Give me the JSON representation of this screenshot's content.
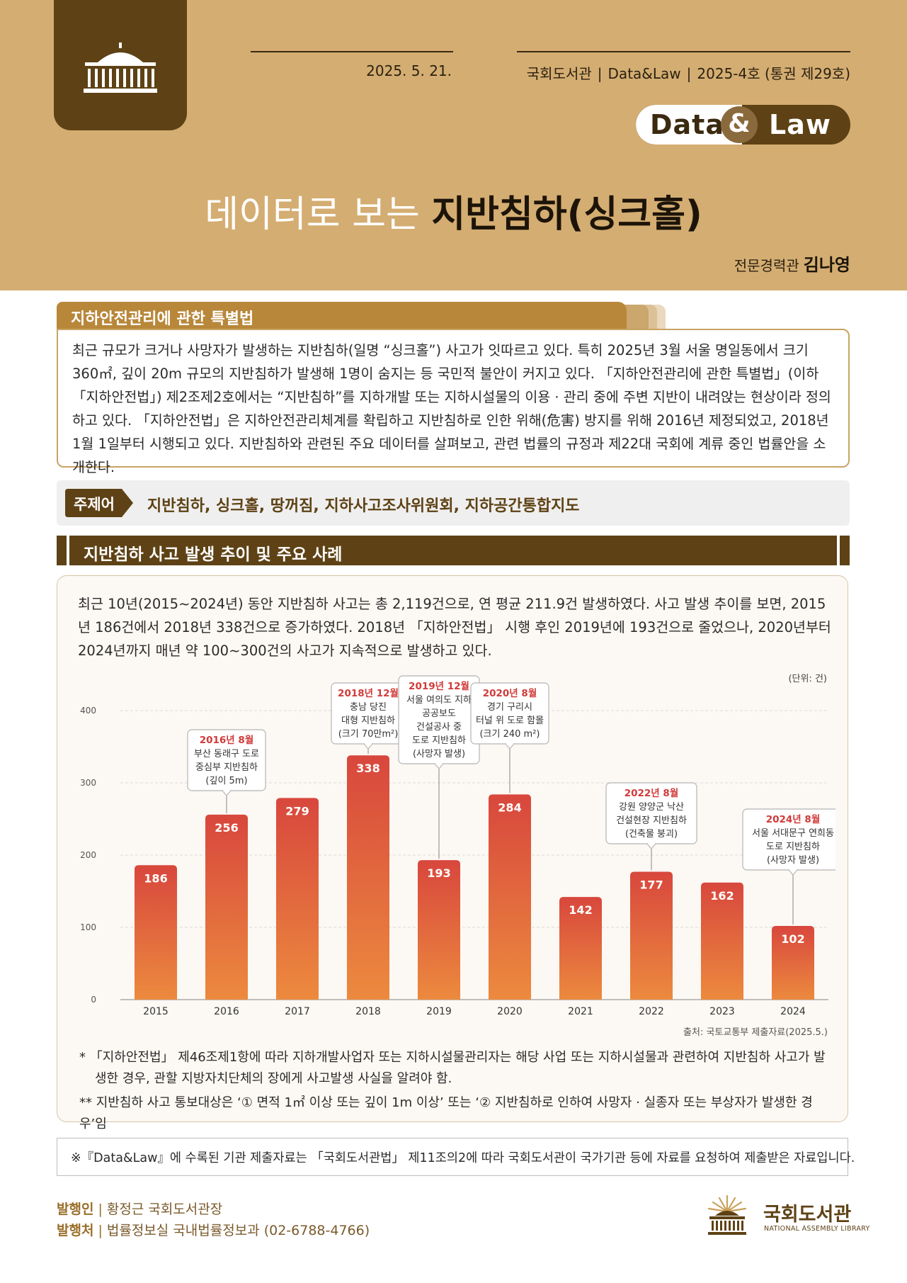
{
  "header": {
    "date": "2025. 5. 21.",
    "issue": [
      "국회도서관",
      "Data&Law",
      "2025-4호 (통권 제29호)"
    ],
    "badge": {
      "data": "Data",
      "amp": "&",
      "law": "Law"
    },
    "title_light": "데이터로 보는 ",
    "title_bold": "지반침하(싱크홀)",
    "author_role": "전문경력관",
    "author_name": "김나영"
  },
  "section1": {
    "title": "지하안전관리에 관한 특별법",
    "body": "최근 규모가 크거나 사망자가 발생하는 지반침하(일명 “싱크홀”) 사고가 잇따르고 있다. 특히 2025년 3월 서울 명일동에서 크기 360㎡, 깊이 20m 규모의 지반침하가 발생해 1명이 숨지는 등 국민적 불안이 커지고 있다. 「지하안전관리에 관한 특별법」(이하 「지하안전법」) 제2조제2호에서는 “지반침하”를 지하개발 또는 지하시설물의 이용 · 관리 중에 주변 지반이 내려앉는 현상이라 정의하고 있다. 「지하안전법」은 지하안전관리체계를 확립하고 지반침하로 인한 위해(危害) 방지를 위해 2016년 제정되었고, 2018년 1월 1일부터 시행되고 있다. 지반침하와 관련된 주요 데이터를 살펴보고, 관련 법률의 규정과 제22대 국회에 계류 중인 법률안을 소개한다."
  },
  "keywords": {
    "label": "주제어",
    "text": "지반침하, 싱크홀, 땅꺼짐, 지하사고조사위원회, 지하공간통합지도"
  },
  "section2": {
    "title": "지반침하 사고 발생 추이 및 주요 사례",
    "body": "최근 10년(2015~2024년) 동안 지반침하 사고는 총 2,119건으로, 연 평균 211.9건 발생하였다. 사고 발생 추이를 보면, 2015년 186건에서 2018년 338건으로 증가하였다. 2018년 「지하안전법」 시행 후인 2019년에 193건으로 줄었으나, 2020년부터 2024년까지 매년 약 100~300건의 사고가 지속적으로 발생하고 있다."
  },
  "chart_data": {
    "type": "bar",
    "unit": "(단위: 건)",
    "categories": [
      "2015",
      "2016",
      "2017",
      "2018",
      "2019",
      "2020",
      "2021",
      "2022",
      "2023",
      "2024"
    ],
    "values": [
      186,
      256,
      279,
      338,
      193,
      284,
      142,
      177,
      162,
      102
    ],
    "ylim": [
      0,
      400
    ],
    "yticks": [
      0,
      100,
      200,
      300,
      400
    ],
    "grid": true,
    "bar_color_top": "#d8473d",
    "bar_color_bottom": "#ec8a3e",
    "annotations": [
      {
        "year": "2016",
        "date": "2016년 8월",
        "lines": [
          "부산 동래구 도로",
          "중심부 지반침하",
          "(깊이 5m)"
        ]
      },
      {
        "year": "2018",
        "date": "2018년 12월",
        "lines": [
          "충남 당진",
          "대형 지반침하",
          "(크기 70만m²)"
        ]
      },
      {
        "year": "2019",
        "date": "2019년 12월",
        "lines": [
          "서울 여의도 지하",
          "공공보도",
          "건설공사 중",
          "도로 지반침하",
          "(사망자 발생)"
        ]
      },
      {
        "year": "2020",
        "date": "2020년 8월",
        "lines": [
          "경기 구리시",
          "터널 위 도로 함몰",
          "(크기 240 m²)"
        ]
      },
      {
        "year": "2022",
        "date": "2022년 8월",
        "lines": [
          "강원 양양군 낙산",
          "건설현장 지반침하",
          "(건축물 붕괴)"
        ]
      },
      {
        "year": "2024",
        "date": "2024년 8월",
        "lines": [
          "서울 서대문구 연희동",
          "도로 지반침하",
          "(사망자 발생)"
        ]
      }
    ],
    "source": "출처: 국토교통부 제출자료(2025.5.)"
  },
  "notes": [
    "* 「지하안전법」 제46조제1항에 따라 지하개발사업자 또는 지하시설물관리자는 해당 사업 또는 지하시설물과 관련하여 지반침하 사고가 발생한 경우, 관할 지방자치단체의 장에게 사고발생 사실을 알려야 함.",
    "** 지반침하 사고 통보대상은 ‘① 면적 1㎡ 이상 또는 깊이 1m 이상’ 또는 ‘② 지반침하로 인하여 사망자 · 실종자 또는 부상자가 발생한 경우’임"
  ],
  "disclaimer": "※『Data&Law』에 수록된 기관 제출자료는 「국회도서관법」 제11조의2에 따라 국회도서관이 국가기관 등에 자료를 요청하여 제출받은 자료입니다.",
  "footer": {
    "publisher_label": "발행인",
    "publisher_value": "황정근 국회도서관장",
    "issuer_label": "발행처",
    "issuer_value": "법률정보실 국내법률정보과 (02-6788-4766)",
    "logo_ko": "국회도서관",
    "logo_en": "NATIONAL ASSEMBLY LIBRARY"
  },
  "colors": {
    "header_bg": "#d4ad72",
    "brand_brown": "#5e4215",
    "accent_gold": "#b8873a",
    "annotation_date": "#d23a3a"
  }
}
